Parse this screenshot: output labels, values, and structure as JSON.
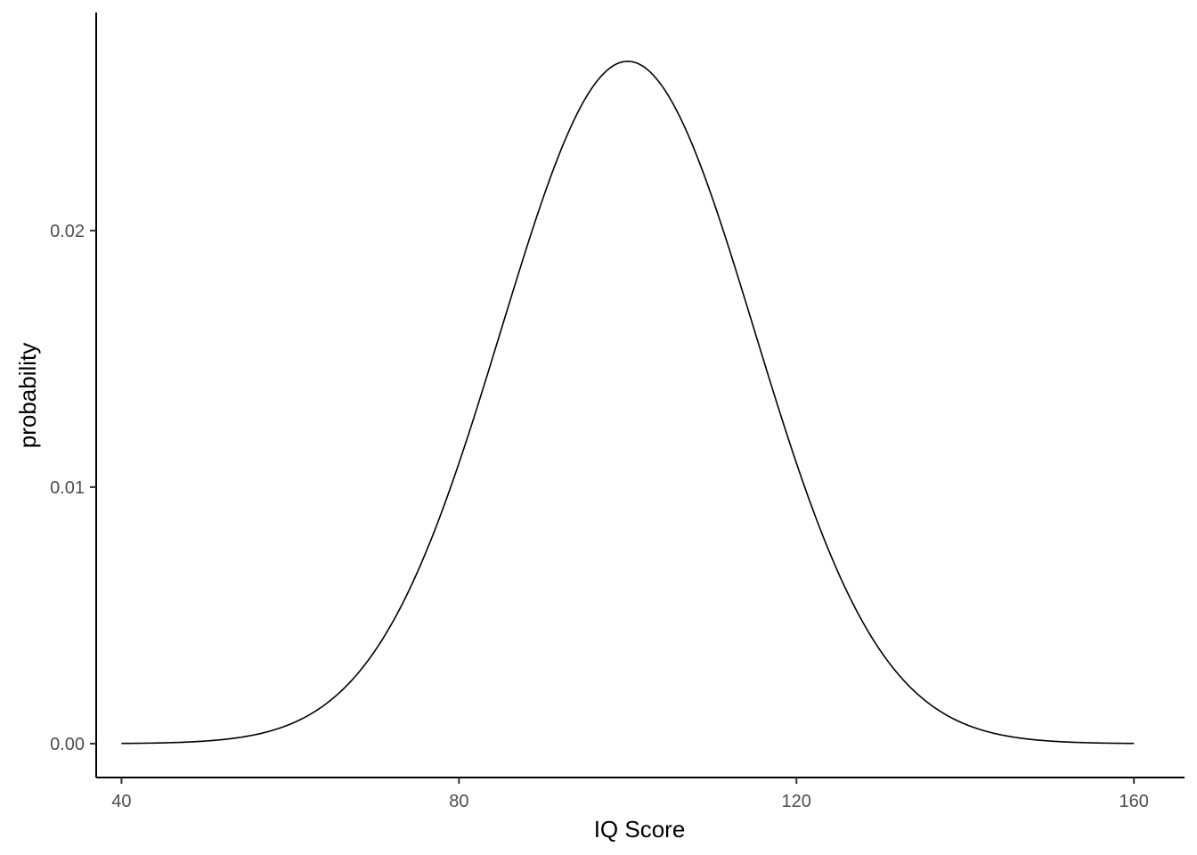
{
  "chart_data": {
    "type": "line",
    "title": "",
    "xlabel": "IQ Score",
    "ylabel": "probability",
    "xlim": [
      37,
      166
    ],
    "ylim": [
      -0.00132,
      0.0285
    ],
    "x_ticks": [
      40,
      80,
      120,
      160
    ],
    "y_ticks": [
      0.0,
      0.01,
      0.02
    ],
    "x_tick_labels": [
      "40",
      "80",
      "120",
      "160"
    ],
    "y_tick_labels": [
      "0.00",
      "0.01",
      "0.02"
    ],
    "grid": false,
    "legend": "none",
    "series": [
      {
        "line_color": "#000000",
        "distribution": "normal",
        "mean": 100,
        "sd": 15,
        "x_range": [
          40,
          160
        ],
        "x": [
          40,
          50,
          60,
          70,
          80,
          90,
          100,
          110,
          120,
          130,
          140,
          150,
          160
        ],
        "values": [
          1e-05,
          0.00011,
          0.00076,
          0.0036,
          0.0109,
          0.0213,
          0.0266,
          0.0213,
          0.0109,
          0.0036,
          0.00076,
          0.00011,
          1e-05
        ]
      }
    ]
  }
}
